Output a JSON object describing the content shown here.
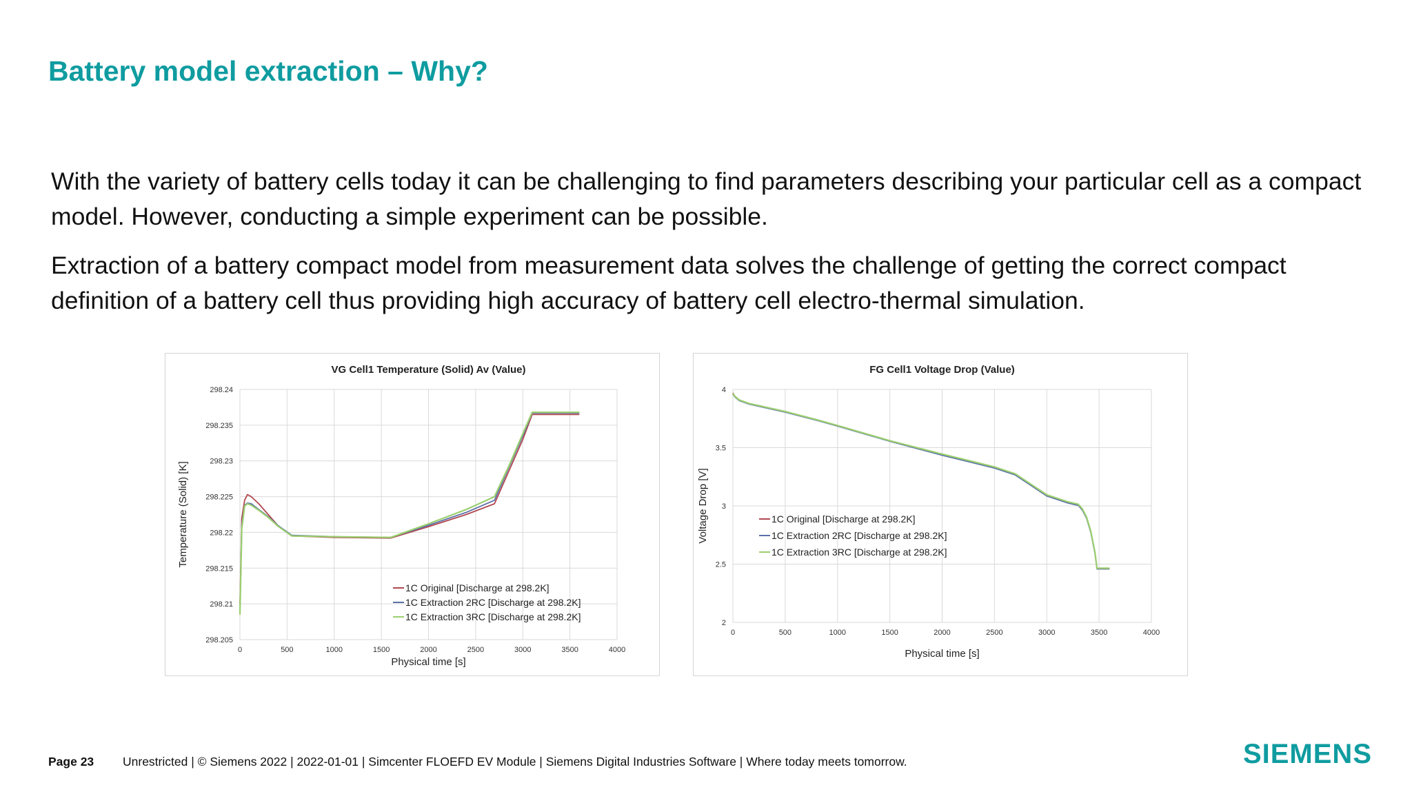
{
  "slide": {
    "title": "Battery model extraction – Why?",
    "paragraph1": "With the variety of battery cells today it can be challenging to find parameters describing your particular cell as a compact model. However, conducting a simple experiment can be possible.",
    "paragraph2": "Extraction of a battery compact model from measurement data solves the challenge of getting the correct compact definition of a battery cell thus providing high accuracy of battery cell electro-thermal simulation."
  },
  "footer": {
    "page": "Page 23",
    "text": "Unrestricted | © Siemens 2022 | 2022-01-01 | Simcenter FLOEFD EV Module | Siemens Digital Industries Software | Where today meets tomorrow.",
    "logo": "SIEMENS"
  },
  "colors": {
    "accent": "#0f9ca0",
    "series_original": "#b0474f",
    "series_2rc": "#5a6fa8",
    "series_3rc": "#9bcf6e"
  },
  "chart_data": [
    {
      "type": "line",
      "title": "VG Cell1 Temperature (Solid) Av (Value)",
      "xlabel": "Physical time [s]",
      "ylabel": "Temperature (Solid) [K]",
      "xlim": [
        0,
        4000
      ],
      "ylim": [
        298.205,
        298.24
      ],
      "xticks": [
        "0",
        "500",
        "1000",
        "1500",
        "2000",
        "2500",
        "3000",
        "3500",
        "4000"
      ],
      "yticks": [
        "298.205",
        "298.21",
        "298.215",
        "298.22",
        "298.225",
        "298.23",
        "298.235",
        "298.24"
      ],
      "grid": true,
      "legend_position": "bottom-right",
      "series": [
        {
          "name": "1C Original [Discharge at 298.2K]",
          "x": [
            0,
            20,
            50,
            80,
            120,
            200,
            300,
            400,
            550,
            1000,
            1600,
            2000,
            2400,
            2700,
            2850,
            3000,
            3100,
            3600
          ],
          "y": [
            298.21,
            298.222,
            298.2245,
            298.2253,
            298.225,
            298.224,
            298.2225,
            298.221,
            298.2195,
            298.2193,
            298.2192,
            298.2208,
            298.2225,
            298.224,
            298.2285,
            298.233,
            298.2365,
            298.2365
          ]
        },
        {
          "name": "1C Extraction 2RC [Discharge at 298.2K]",
          "x": [
            0,
            20,
            50,
            80,
            120,
            200,
            300,
            400,
            550,
            1000,
            1600,
            2000,
            2400,
            2700,
            2850,
            3000,
            3100,
            3600
          ],
          "y": [
            298.209,
            298.221,
            298.2238,
            298.2241,
            298.224,
            298.2232,
            298.2222,
            298.221,
            298.2196,
            298.2194,
            298.2193,
            298.221,
            298.2228,
            298.2245,
            298.229,
            298.2335,
            298.2367,
            298.2367
          ]
        },
        {
          "name": "1C Extraction 3RC [Discharge at 298.2K]",
          "x": [
            0,
            20,
            50,
            80,
            120,
            200,
            300,
            400,
            550,
            1000,
            1600,
            2000,
            2400,
            2700,
            2850,
            3000,
            3100,
            3600
          ],
          "y": [
            298.2085,
            298.2205,
            298.2237,
            298.224,
            298.2238,
            298.2231,
            298.2221,
            298.2209,
            298.2195,
            298.2194,
            298.2193,
            298.2212,
            298.2232,
            298.225,
            298.2292,
            298.2338,
            298.2368,
            298.2368
          ]
        }
      ]
    },
    {
      "type": "line",
      "title": "FG Cell1 Voltage Drop (Value)",
      "xlabel": "Physical time [s]",
      "ylabel": "Voltage Drop [V]",
      "xlim": [
        0,
        4000
      ],
      "ylim": [
        2,
        4
      ],
      "xticks": [
        "0",
        "500",
        "1000",
        "1500",
        "2000",
        "2500",
        "3000",
        "3500",
        "4000"
      ],
      "yticks": [
        "2",
        "2.5",
        "3",
        "3.5",
        "4"
      ],
      "grid": true,
      "legend_position": "middle-left",
      "series": [
        {
          "name": "1C Original [Discharge at 298.2K]",
          "x": [
            0,
            20,
            60,
            150,
            300,
            500,
            800,
            1000,
            1500,
            2000,
            2500,
            2700,
            3000,
            3200,
            3300,
            3340,
            3380,
            3420,
            3460,
            3480,
            3500,
            3600
          ],
          "y": [
            3.97,
            3.94,
            3.91,
            3.88,
            3.85,
            3.81,
            3.74,
            3.69,
            3.56,
            3.44,
            3.33,
            3.27,
            3.09,
            3.03,
            3.01,
            2.97,
            2.9,
            2.78,
            2.6,
            2.46,
            2.46,
            2.46
          ]
        },
        {
          "name": "1C Extraction 2RC [Discharge at 298.2K]",
          "x": [
            0,
            20,
            60,
            150,
            300,
            500,
            800,
            1000,
            1500,
            2000,
            2500,
            2700,
            3000,
            3200,
            3300,
            3340,
            3380,
            3420,
            3460,
            3480,
            3500,
            3600
          ],
          "y": [
            3.96,
            3.935,
            3.905,
            3.875,
            3.845,
            3.805,
            3.735,
            3.685,
            3.555,
            3.435,
            3.325,
            3.265,
            3.085,
            3.025,
            3.005,
            2.965,
            2.895,
            2.775,
            2.595,
            2.46,
            2.46,
            2.46
          ]
        },
        {
          "name": "1C Extraction 3RC [Discharge at 298.2K]",
          "x": [
            0,
            20,
            60,
            150,
            300,
            500,
            800,
            1000,
            1500,
            2000,
            2500,
            2700,
            3000,
            3200,
            3300,
            3340,
            3380,
            3420,
            3460,
            3480,
            3500,
            3600
          ],
          "y": [
            3.965,
            3.94,
            3.91,
            3.88,
            3.85,
            3.81,
            3.74,
            3.69,
            3.56,
            3.445,
            3.335,
            3.275,
            3.095,
            3.035,
            3.015,
            2.975,
            2.905,
            2.785,
            2.605,
            2.465,
            2.465,
            2.465
          ]
        }
      ]
    }
  ]
}
